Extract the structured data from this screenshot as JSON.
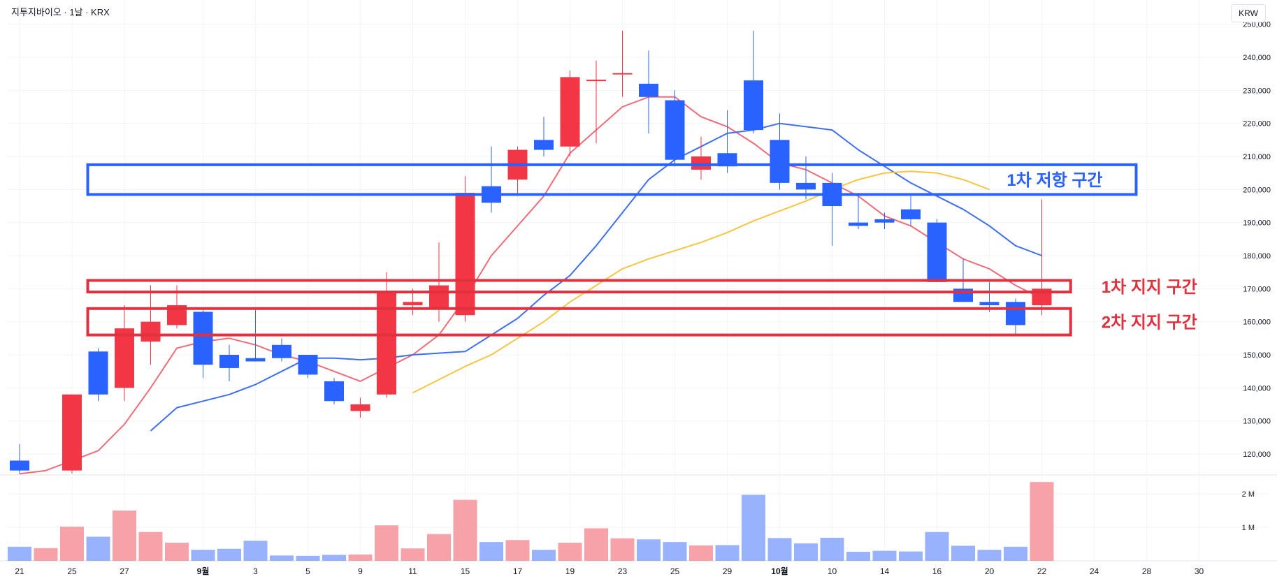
{
  "header": {
    "title": "지투지바이오 · 1날 · KRX",
    "currency": "KRW"
  },
  "colors": {
    "up": "#f23645",
    "down": "#2962ff",
    "vol_up": "#f7a1a9",
    "vol_down": "#98b2fd",
    "ma_fast": "#ee6c78",
    "ma_mid": "#3f6ff0",
    "ma_slow": "#f7c544",
    "resistance": "#2962ff",
    "support": "#e0313f"
  },
  "chart_data": {
    "type": "candlestick",
    "price_axis": {
      "range": [
        115000,
        250000
      ],
      "ticks": [
        "120,000",
        "130,000",
        "140,000",
        "150,000",
        "160,000",
        "170,000",
        "180,000",
        "190,000",
        "200,000",
        "210,000",
        "220,000",
        "230,000",
        "240,000",
        "250,000"
      ]
    },
    "volume_axis": {
      "ticks": [
        {
          "value": 1000000,
          "label": "1 M"
        },
        {
          "value": 2000000,
          "label": "2 M"
        }
      ]
    },
    "x_labels": [
      {
        "i": 0,
        "label": "21"
      },
      {
        "i": 2,
        "label": "25"
      },
      {
        "i": 4,
        "label": "27"
      },
      {
        "i": 7,
        "label": "9월",
        "bold": true
      },
      {
        "i": 9,
        "label": "3"
      },
      {
        "i": 11,
        "label": "5"
      },
      {
        "i": 13,
        "label": "9"
      },
      {
        "i": 15,
        "label": "11"
      },
      {
        "i": 17,
        "label": "15"
      },
      {
        "i": 19,
        "label": "17"
      },
      {
        "i": 21,
        "label": "19"
      },
      {
        "i": 23,
        "label": "23"
      },
      {
        "i": 25,
        "label": "25"
      },
      {
        "i": 27,
        "label": "29"
      },
      {
        "i": 29,
        "label": "10월",
        "bold": true
      },
      {
        "i": 31,
        "label": "10"
      },
      {
        "i": 33,
        "label": "14"
      },
      {
        "i": 35,
        "label": "16"
      },
      {
        "i": 37,
        "label": "20"
      },
      {
        "i": 39,
        "label": "22"
      },
      {
        "i": 41,
        "label": "24"
      },
      {
        "i": 43,
        "label": "28"
      },
      {
        "i": 45,
        "label": "30"
      }
    ],
    "candles": [
      {
        "o": 118000,
        "h": 123000,
        "l": 114000,
        "c": 115000,
        "v": 420000
      },
      {
        "o": 0,
        "h": 0,
        "l": 0,
        "c": 0,
        "v": 380000,
        "up": true
      },
      {
        "o": 115000,
        "h": 138000,
        "l": 114000,
        "c": 138000,
        "v": 1020000
      },
      {
        "o": 151000,
        "h": 152000,
        "l": 136000,
        "c": 138000,
        "v": 720000
      },
      {
        "o": 140000,
        "h": 165000,
        "l": 136000,
        "c": 158000,
        "v": 1500000
      },
      {
        "o": 154000,
        "h": 171000,
        "l": 147000,
        "c": 160000,
        "v": 860000
      },
      {
        "o": 159000,
        "h": 171000,
        "l": 158000,
        "c": 165000,
        "v": 540000
      },
      {
        "o": 163000,
        "h": 164000,
        "l": 143000,
        "c": 147000,
        "v": 330000
      },
      {
        "o": 150000,
        "h": 153000,
        "l": 142000,
        "c": 146000,
        "v": 360000
      },
      {
        "o": 149000,
        "h": 164000,
        "l": 148000,
        "c": 148000,
        "v": 600000
      },
      {
        "o": 153000,
        "h": 155000,
        "l": 148000,
        "c": 149000,
        "v": 160000
      },
      {
        "o": 150000,
        "h": 150000,
        "l": 143000,
        "c": 144000,
        "v": 150000
      },
      {
        "o": 142000,
        "h": 143000,
        "l": 135000,
        "c": 136000,
        "v": 180000
      },
      {
        "o": 133000,
        "h": 137000,
        "l": 131000,
        "c": 135000,
        "v": 190000
      },
      {
        "o": 138000,
        "h": 175000,
        "l": 137000,
        "c": 169000,
        "v": 1060000
      },
      {
        "o": 165000,
        "h": 170000,
        "l": 162000,
        "c": 166000,
        "v": 370000
      },
      {
        "o": 164000,
        "h": 184000,
        "l": 160000,
        "c": 171000,
        "v": 800000
      },
      {
        "o": 162000,
        "h": 204000,
        "l": 160000,
        "c": 199000,
        "v": 1820000
      },
      {
        "o": 201000,
        "h": 213000,
        "l": 193000,
        "c": 196000,
        "v": 560000
      },
      {
        "o": 203000,
        "h": 213000,
        "l": 198000,
        "c": 212000,
        "v": 620000
      },
      {
        "o": 215000,
        "h": 222000,
        "l": 210000,
        "c": 212000,
        "v": 330000
      },
      {
        "o": 213000,
        "h": 236000,
        "l": 210000,
        "c": 234000,
        "v": 540000
      },
      {
        "o": 233000,
        "h": 239000,
        "l": 214000,
        "c": 233000,
        "v": 970000
      },
      {
        "o": 235000,
        "h": 248000,
        "l": 228000,
        "c": 235000,
        "v": 670000
      },
      {
        "o": 232000,
        "h": 242000,
        "l": 217000,
        "c": 228000,
        "v": 640000
      },
      {
        "o": 227000,
        "h": 230000,
        "l": 207000,
        "c": 209000,
        "v": 560000
      },
      {
        "o": 206000,
        "h": 216000,
        "l": 203000,
        "c": 210000,
        "v": 460000
      },
      {
        "o": 211000,
        "h": 224000,
        "l": 205000,
        "c": 207000,
        "v": 470000
      },
      {
        "o": 233000,
        "h": 248000,
        "l": 217000,
        "c": 218000,
        "v": 1970000
      },
      {
        "o": 215000,
        "h": 223000,
        "l": 200000,
        "c": 202000,
        "v": 680000
      },
      {
        "o": 202000,
        "h": 210000,
        "l": 197000,
        "c": 200000,
        "v": 520000
      },
      {
        "o": 202000,
        "h": 205000,
        "l": 183000,
        "c": 195000,
        "v": 690000
      },
      {
        "o": 190000,
        "h": 199000,
        "l": 188000,
        "c": 189000,
        "v": 270000
      },
      {
        "o": 191000,
        "h": 193000,
        "l": 188000,
        "c": 190000,
        "v": 300000
      },
      {
        "o": 194000,
        "h": 198000,
        "l": 189000,
        "c": 191000,
        "v": 280000
      },
      {
        "o": 190000,
        "h": 191000,
        "l": 172000,
        "c": 172000,
        "v": 860000
      },
      {
        "o": 170000,
        "h": 179000,
        "l": 166000,
        "c": 166000,
        "v": 450000
      },
      {
        "o": 166000,
        "h": 172000,
        "l": 163000,
        "c": 165000,
        "v": 330000
      },
      {
        "o": 166000,
        "h": 167000,
        "l": 156000,
        "c": 159000,
        "v": 420000
      },
      {
        "o": 165000,
        "h": 197000,
        "l": 162000,
        "c": 170000,
        "v": 2350000
      }
    ],
    "moving_averages": [
      {
        "key": "ma_fast",
        "start": 0,
        "values": [
          114000,
          115000,
          118000,
          121000,
          129000,
          140000,
          152000,
          154000,
          155000,
          153000,
          150000,
          148000,
          145000,
          142000,
          146000,
          150000,
          156000,
          167000,
          180000,
          189000,
          198000,
          211000,
          218000,
          225000,
          228000,
          228000,
          222000,
          219000,
          214000,
          208000,
          206000,
          202000,
          198000,
          192000,
          189000,
          184000,
          179000,
          176000,
          171000,
          167000
        ]
      },
      {
        "key": "ma_mid",
        "start": 5,
        "values": [
          127000,
          134000,
          136000,
          138000,
          141000,
          145000,
          149000,
          149000,
          148500,
          149000,
          150000,
          150500,
          151000,
          156000,
          161000,
          168000,
          174000,
          183000,
          193000,
          203000,
          209000,
          213000,
          217000,
          218000,
          220000,
          219000,
          218000,
          212000,
          207000,
          202000,
          198000,
          194000,
          189000,
          183000,
          180000
        ]
      },
      {
        "key": "ma_slow",
        "start": 15,
        "values": [
          138500,
          142500,
          146500,
          150000,
          155000,
          160000,
          166000,
          171000,
          176000,
          179000,
          181500,
          184000,
          187000,
          190500,
          193500,
          196500,
          200000,
          203000,
          205000,
          205500,
          205000,
          203000,
          200000
        ]
      }
    ],
    "zones": [
      {
        "kind": "resistance",
        "label": "1차 저항 구간",
        "top": 207500,
        "bottom": 198500,
        "from": 2.6,
        "to": 42.6
      },
      {
        "kind": "support",
        "label": "1차 지지 구간",
        "top": 172500,
        "bottom": 169000,
        "from": 2.6,
        "to": 40.1
      },
      {
        "kind": "support",
        "label": "2차 지지 구간",
        "top": 164000,
        "bottom": 156000,
        "from": 2.6,
        "to": 40.1
      }
    ]
  }
}
